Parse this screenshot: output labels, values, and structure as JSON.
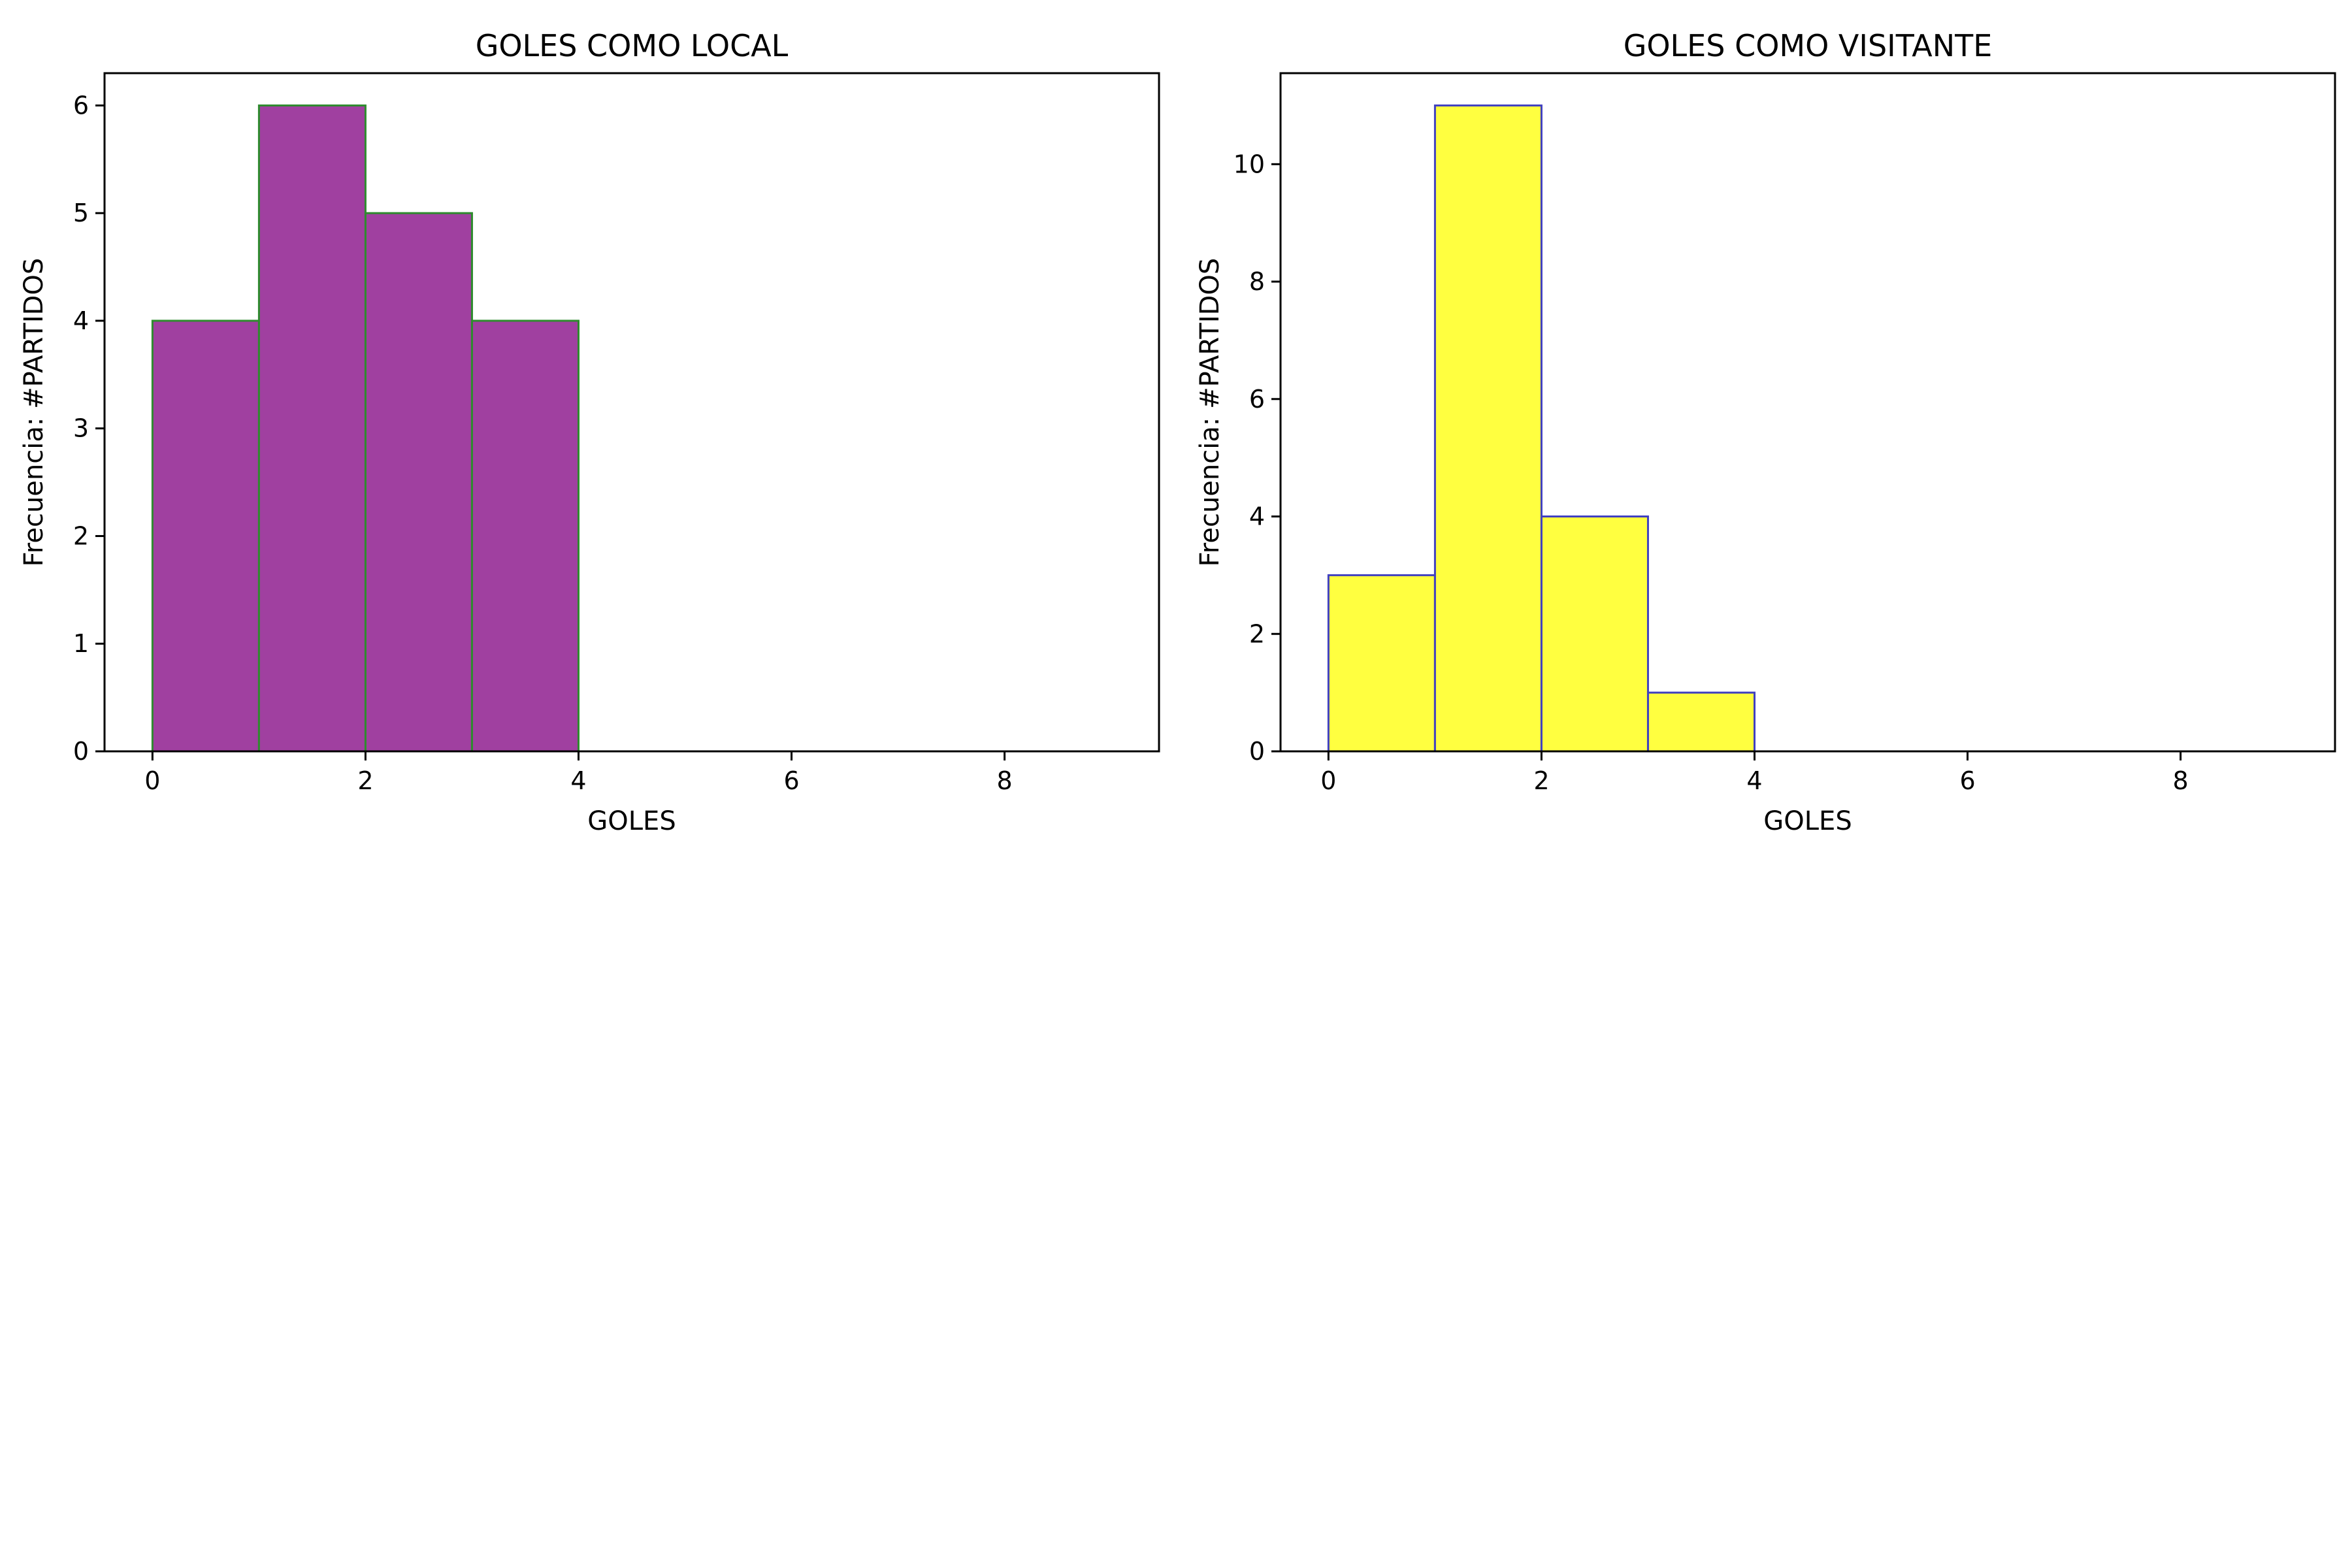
{
  "chart_data": [
    {
      "type": "bar",
      "histogram": true,
      "title": "GOLES COMO LOCAL",
      "xlabel": "GOLES",
      "ylabel": "Frecuencia: #PARTIDOS",
      "bin_edges": [
        0,
        1,
        2,
        3,
        4,
        5,
        6,
        7,
        8,
        9
      ],
      "values": [
        4,
        6,
        5,
        4,
        0,
        0,
        0,
        0,
        0
      ],
      "xlim": [
        -0.45,
        9.45
      ],
      "ylim": [
        0,
        6.3
      ],
      "xticks": [
        "0",
        "2",
        "4",
        "6",
        "8"
      ],
      "yticks": [
        "0",
        "1",
        "2",
        "3",
        "4",
        "5",
        "6"
      ],
      "bar_color": "#A040A0",
      "edge_color": "#2E8B2E",
      "grid": false,
      "legend": "none"
    },
    {
      "type": "bar",
      "histogram": true,
      "title": "GOLES COMO VISITANTE",
      "xlabel": "GOLES",
      "ylabel": "Frecuencia: #PARTIDOS",
      "bin_edges": [
        0,
        1,
        2,
        3,
        4,
        5,
        6,
        7,
        8,
        9
      ],
      "values": [
        3,
        11,
        4,
        1,
        0,
        0,
        0,
        0,
        0
      ],
      "xlim": [
        -0.45,
        9.45
      ],
      "ylim": [
        0,
        11.55
      ],
      "xticks": [
        "0",
        "2",
        "4",
        "6",
        "8"
      ],
      "yticks": [
        "0",
        "2",
        "4",
        "6",
        "8",
        "10"
      ],
      "bar_color": "#FFFF40",
      "edge_color": "#4040C0",
      "grid": false,
      "legend": "none"
    }
  ]
}
